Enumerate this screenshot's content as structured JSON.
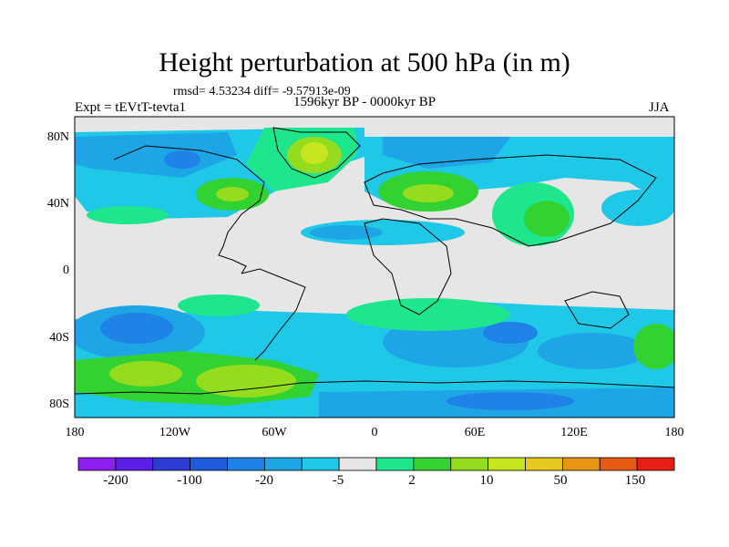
{
  "header": {
    "title": "Height perturbation at 500 hPa (in m)",
    "stats": "rmsd= 4.53234 diff= -9.57913e-09",
    "experiment": "Expt = tEVtT-tevta1",
    "period": "1596kyr BP - 0000kyr BP",
    "season": "JJA"
  },
  "axes": {
    "y_labels": [
      "80N",
      "40N",
      "0",
      "40S",
      "80S"
    ],
    "x_labels": [
      "180",
      "120W",
      "60W",
      "0",
      "60E",
      "120E",
      "180"
    ]
  },
  "colorbar": {
    "colors": [
      "#8c1ef0",
      "#5a1ee6",
      "#2d3cd2",
      "#1e5adc",
      "#1e82e6",
      "#1ea5e6",
      "#1ec8e6",
      "#e6e6e6",
      "#1ee68c",
      "#32d232",
      "#96dc1e",
      "#c8e61e",
      "#e6c81e",
      "#e69614",
      "#e65a14",
      "#e61e14"
    ],
    "labels": [
      "-200",
      "-100",
      "-20",
      "-5",
      "2",
      "10",
      "50",
      "150"
    ]
  }
}
